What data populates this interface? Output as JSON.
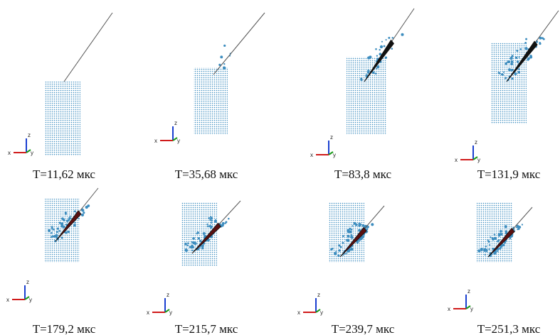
{
  "panels": [
    {
      "caption": "T=11,62 мкс"
    },
    {
      "caption": "T=35,68 мкс"
    },
    {
      "caption": "T=83,8 мкс"
    },
    {
      "caption": "T=131,9 мкс"
    },
    {
      "caption": "T=179,2 мкс"
    },
    {
      "caption": "T=215,7 мкс"
    },
    {
      "caption": "T=239,7 мкс"
    },
    {
      "caption": "T=251,3 мкс"
    }
  ],
  "triad": {
    "z": "z",
    "x": "x",
    "y": "y"
  }
}
